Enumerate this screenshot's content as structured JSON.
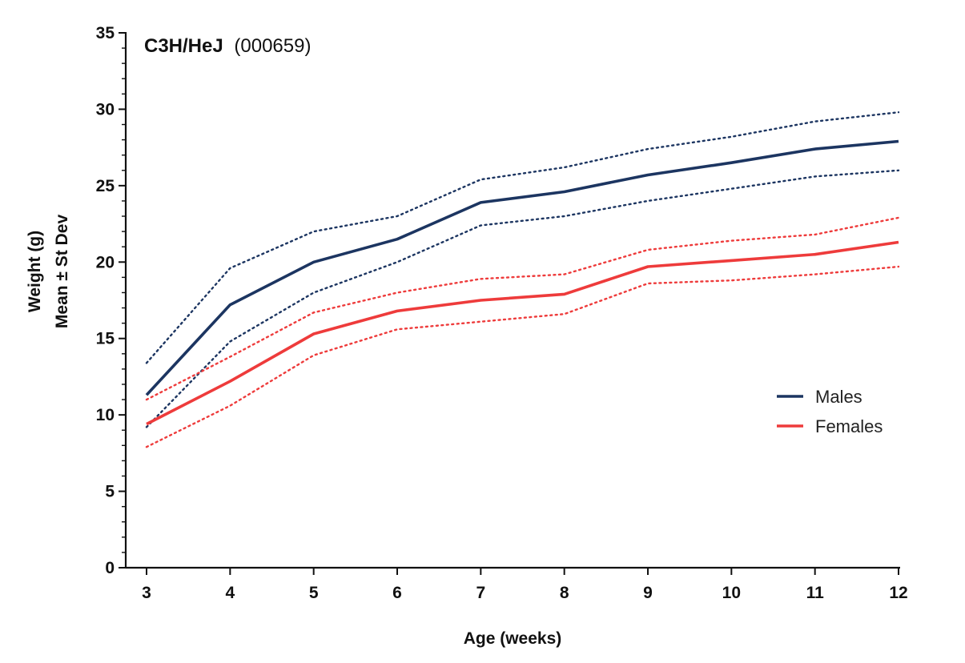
{
  "chart_data": {
    "type": "line",
    "title": "C3H/HeJ",
    "subtitle": "(000659)",
    "xlabel": "Age (weeks)",
    "ylabel_line1": "Weight (g)",
    "ylabel_line2": "Mean ± St Dev",
    "xlim": [
      3,
      12
    ],
    "ylim": [
      0,
      35
    ],
    "x": [
      3,
      4,
      5,
      6,
      7,
      8,
      9,
      10,
      11,
      12
    ],
    "x_tick_labels": [
      "3",
      "4",
      "5",
      "6",
      "7",
      "8",
      "9",
      "10",
      "11",
      "12"
    ],
    "y_ticks": [
      0,
      5,
      10,
      15,
      20,
      25,
      30,
      35
    ],
    "y_tick_labels": [
      "0",
      "5",
      "10",
      "15",
      "20",
      "25",
      "30",
      "35"
    ],
    "grid": false,
    "legend_position": "right",
    "series": [
      {
        "name": "Males",
        "color": "#1c3561",
        "mean": [
          11.3,
          17.2,
          20.0,
          21.5,
          23.9,
          24.6,
          25.7,
          26.5,
          27.4,
          27.9
        ],
        "upper": [
          13.4,
          19.6,
          22.0,
          23.0,
          25.4,
          26.2,
          27.4,
          28.2,
          29.2,
          29.8
        ],
        "lower": [
          9.2,
          14.8,
          18.0,
          20.0,
          22.4,
          23.0,
          24.0,
          24.8,
          25.6,
          26.0
        ]
      },
      {
        "name": "Females",
        "color": "#ee3b3b",
        "mean": [
          9.4,
          12.2,
          15.3,
          16.8,
          17.5,
          17.9,
          19.7,
          20.1,
          20.5,
          21.3
        ],
        "upper": [
          11.0,
          13.8,
          16.7,
          18.0,
          18.9,
          19.2,
          20.8,
          21.4,
          21.8,
          22.9
        ],
        "lower": [
          7.9,
          10.6,
          13.9,
          15.6,
          16.1,
          16.6,
          18.6,
          18.8,
          19.2,
          19.7
        ]
      }
    ]
  }
}
